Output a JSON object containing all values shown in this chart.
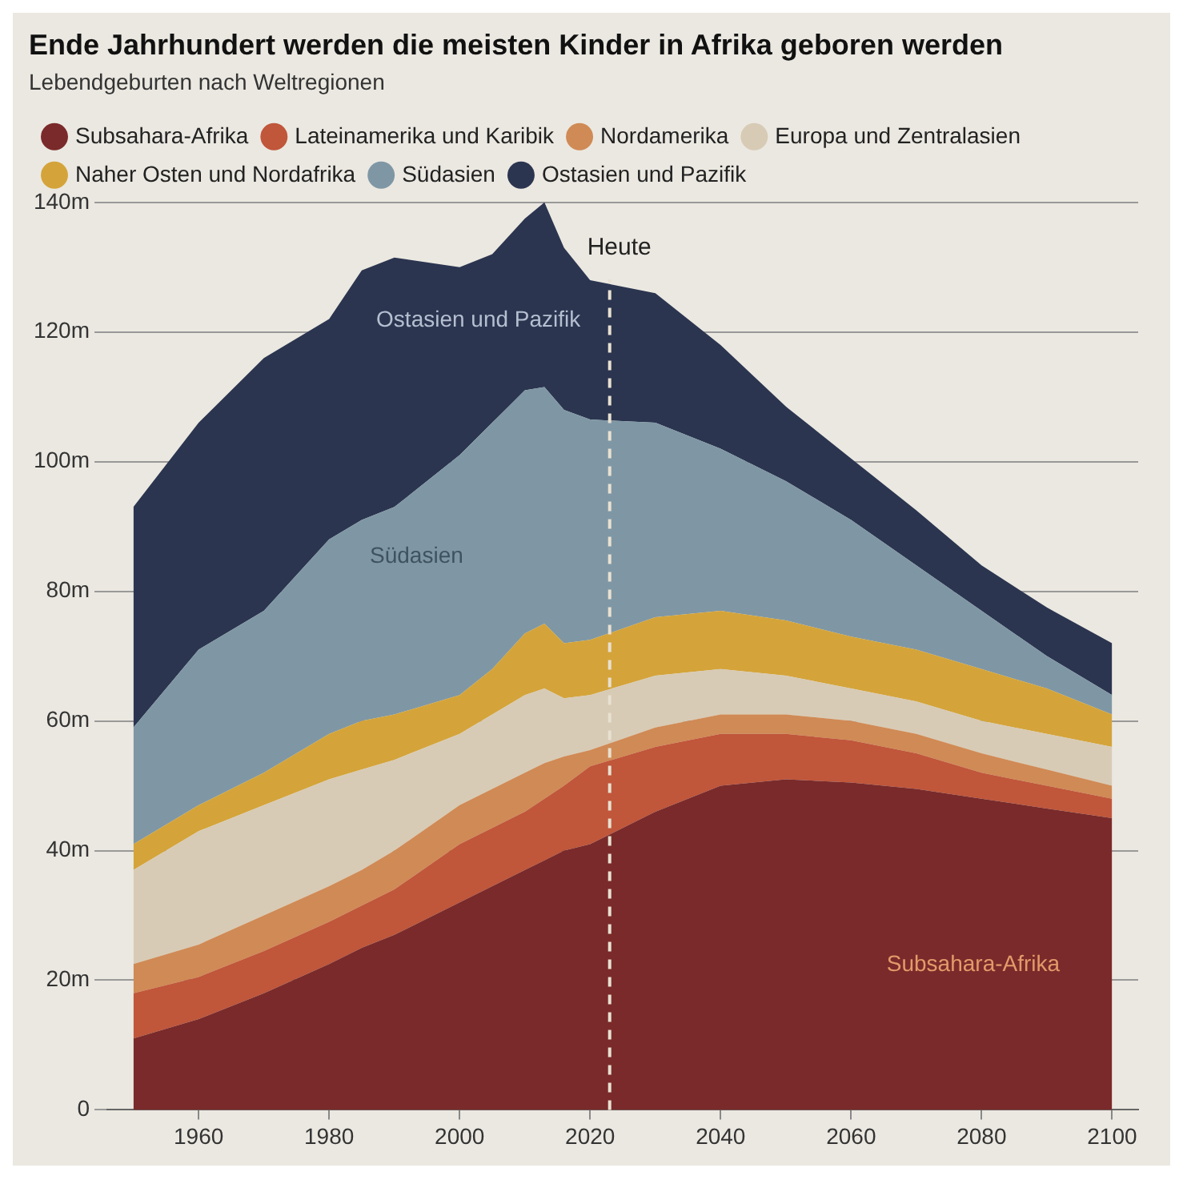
{
  "chart_data": {
    "type": "area",
    "title": "Ende Jahrhundert werden die meisten Kinder in Afrika geboren werden",
    "subtitle": "Lebendgeburten nach Weltregionen",
    "stacked": true,
    "legend": "top left",
    "marker": "none",
    "grid": "y",
    "x": [
      1950,
      1960,
      1970,
      1980,
      1985,
      1990,
      2000,
      2005,
      2010,
      2013,
      2016,
      2020,
      2030,
      2040,
      2050,
      2060,
      2070,
      2080,
      2090,
      2100
    ],
    "series": [
      {
        "name": "Subsahara-Afrika",
        "color": "#7a2a2a",
        "values": [
          11,
          14,
          18,
          22.5,
          25,
          27,
          32,
          34.5,
          37,
          38.5,
          40,
          41,
          46,
          50,
          51,
          50.5,
          49.5,
          48,
          46.5,
          45
        ]
      },
      {
        "name": "Lateinamerika und Karibik",
        "color": "#c0563a",
        "values": [
          7,
          6.5,
          6.5,
          6.5,
          6.5,
          7,
          9,
          9,
          9,
          9.5,
          10,
          12,
          10,
          8,
          7,
          6.5,
          5.5,
          4,
          3.5,
          3
        ]
      },
      {
        "name": "Nordamerika",
        "color": "#d08a55",
        "values": [
          4.5,
          5,
          5.5,
          5.5,
          5.5,
          6,
          6,
          6,
          6,
          5.5,
          4.5,
          2.5,
          3,
          3,
          3,
          3,
          3,
          3,
          2.5,
          2
        ]
      },
      {
        "name": "Europa und Zentralasien",
        "color": "#d8cbb5",
        "values": [
          14.5,
          17.5,
          17,
          16.5,
          15.5,
          14,
          11,
          11.5,
          12,
          11.5,
          9,
          8.5,
          8,
          7,
          6,
          5,
          5,
          5,
          5.5,
          6
        ]
      },
      {
        "name": "Naher Osten und Nordafrika",
        "color": "#d4a43a",
        "values": [
          4,
          4,
          5,
          7,
          7.5,
          7,
          6,
          7,
          9.5,
          10,
          8.5,
          8.5,
          9,
          9,
          8.5,
          8,
          8,
          8,
          7,
          5
        ]
      },
      {
        "name": "Südasien",
        "color": "#7f97a5",
        "values": [
          18,
          24,
          25,
          30,
          31,
          32,
          37,
          38,
          37.5,
          36.5,
          36,
          34,
          30,
          25,
          21.5,
          18,
          13,
          9,
          5,
          3
        ]
      },
      {
        "name": "Ostasien und Pazifik",
        "color": "#2b3550",
        "values": [
          34,
          35,
          39,
          34,
          38.5,
          38.5,
          29,
          26,
          26.5,
          28.5,
          25,
          21.5,
          20,
          16,
          11.5,
          9.5,
          8.5,
          7,
          7.5,
          8
        ]
      }
    ],
    "xlim": [
      1946,
      2104
    ],
    "xticks": [
      1960,
      1980,
      2000,
      2020,
      2040,
      2060,
      2080,
      2100
    ],
    "ylim": [
      0,
      140
    ],
    "yticks": [
      0,
      {
        "value": 20,
        "label": "20m"
      },
      {
        "value": 40,
        "label": "40m"
      },
      {
        "value": 60,
        "label": "60m"
      },
      {
        "value": 80,
        "label": "80m"
      },
      {
        "value": 100,
        "label": "100m"
      },
      {
        "value": 120,
        "label": "120m"
      },
      {
        "value": 140,
        "label": "140m"
      }
    ],
    "ref_lines": [
      {
        "axis": "x",
        "value": 2023,
        "label": "Heute",
        "color": "#e8e0d0",
        "line_style": "dashed"
      }
    ],
    "annotations": [
      "Ostasien und Pazifik",
      "Südasien",
      "Subsahara-Afrika"
    ]
  }
}
